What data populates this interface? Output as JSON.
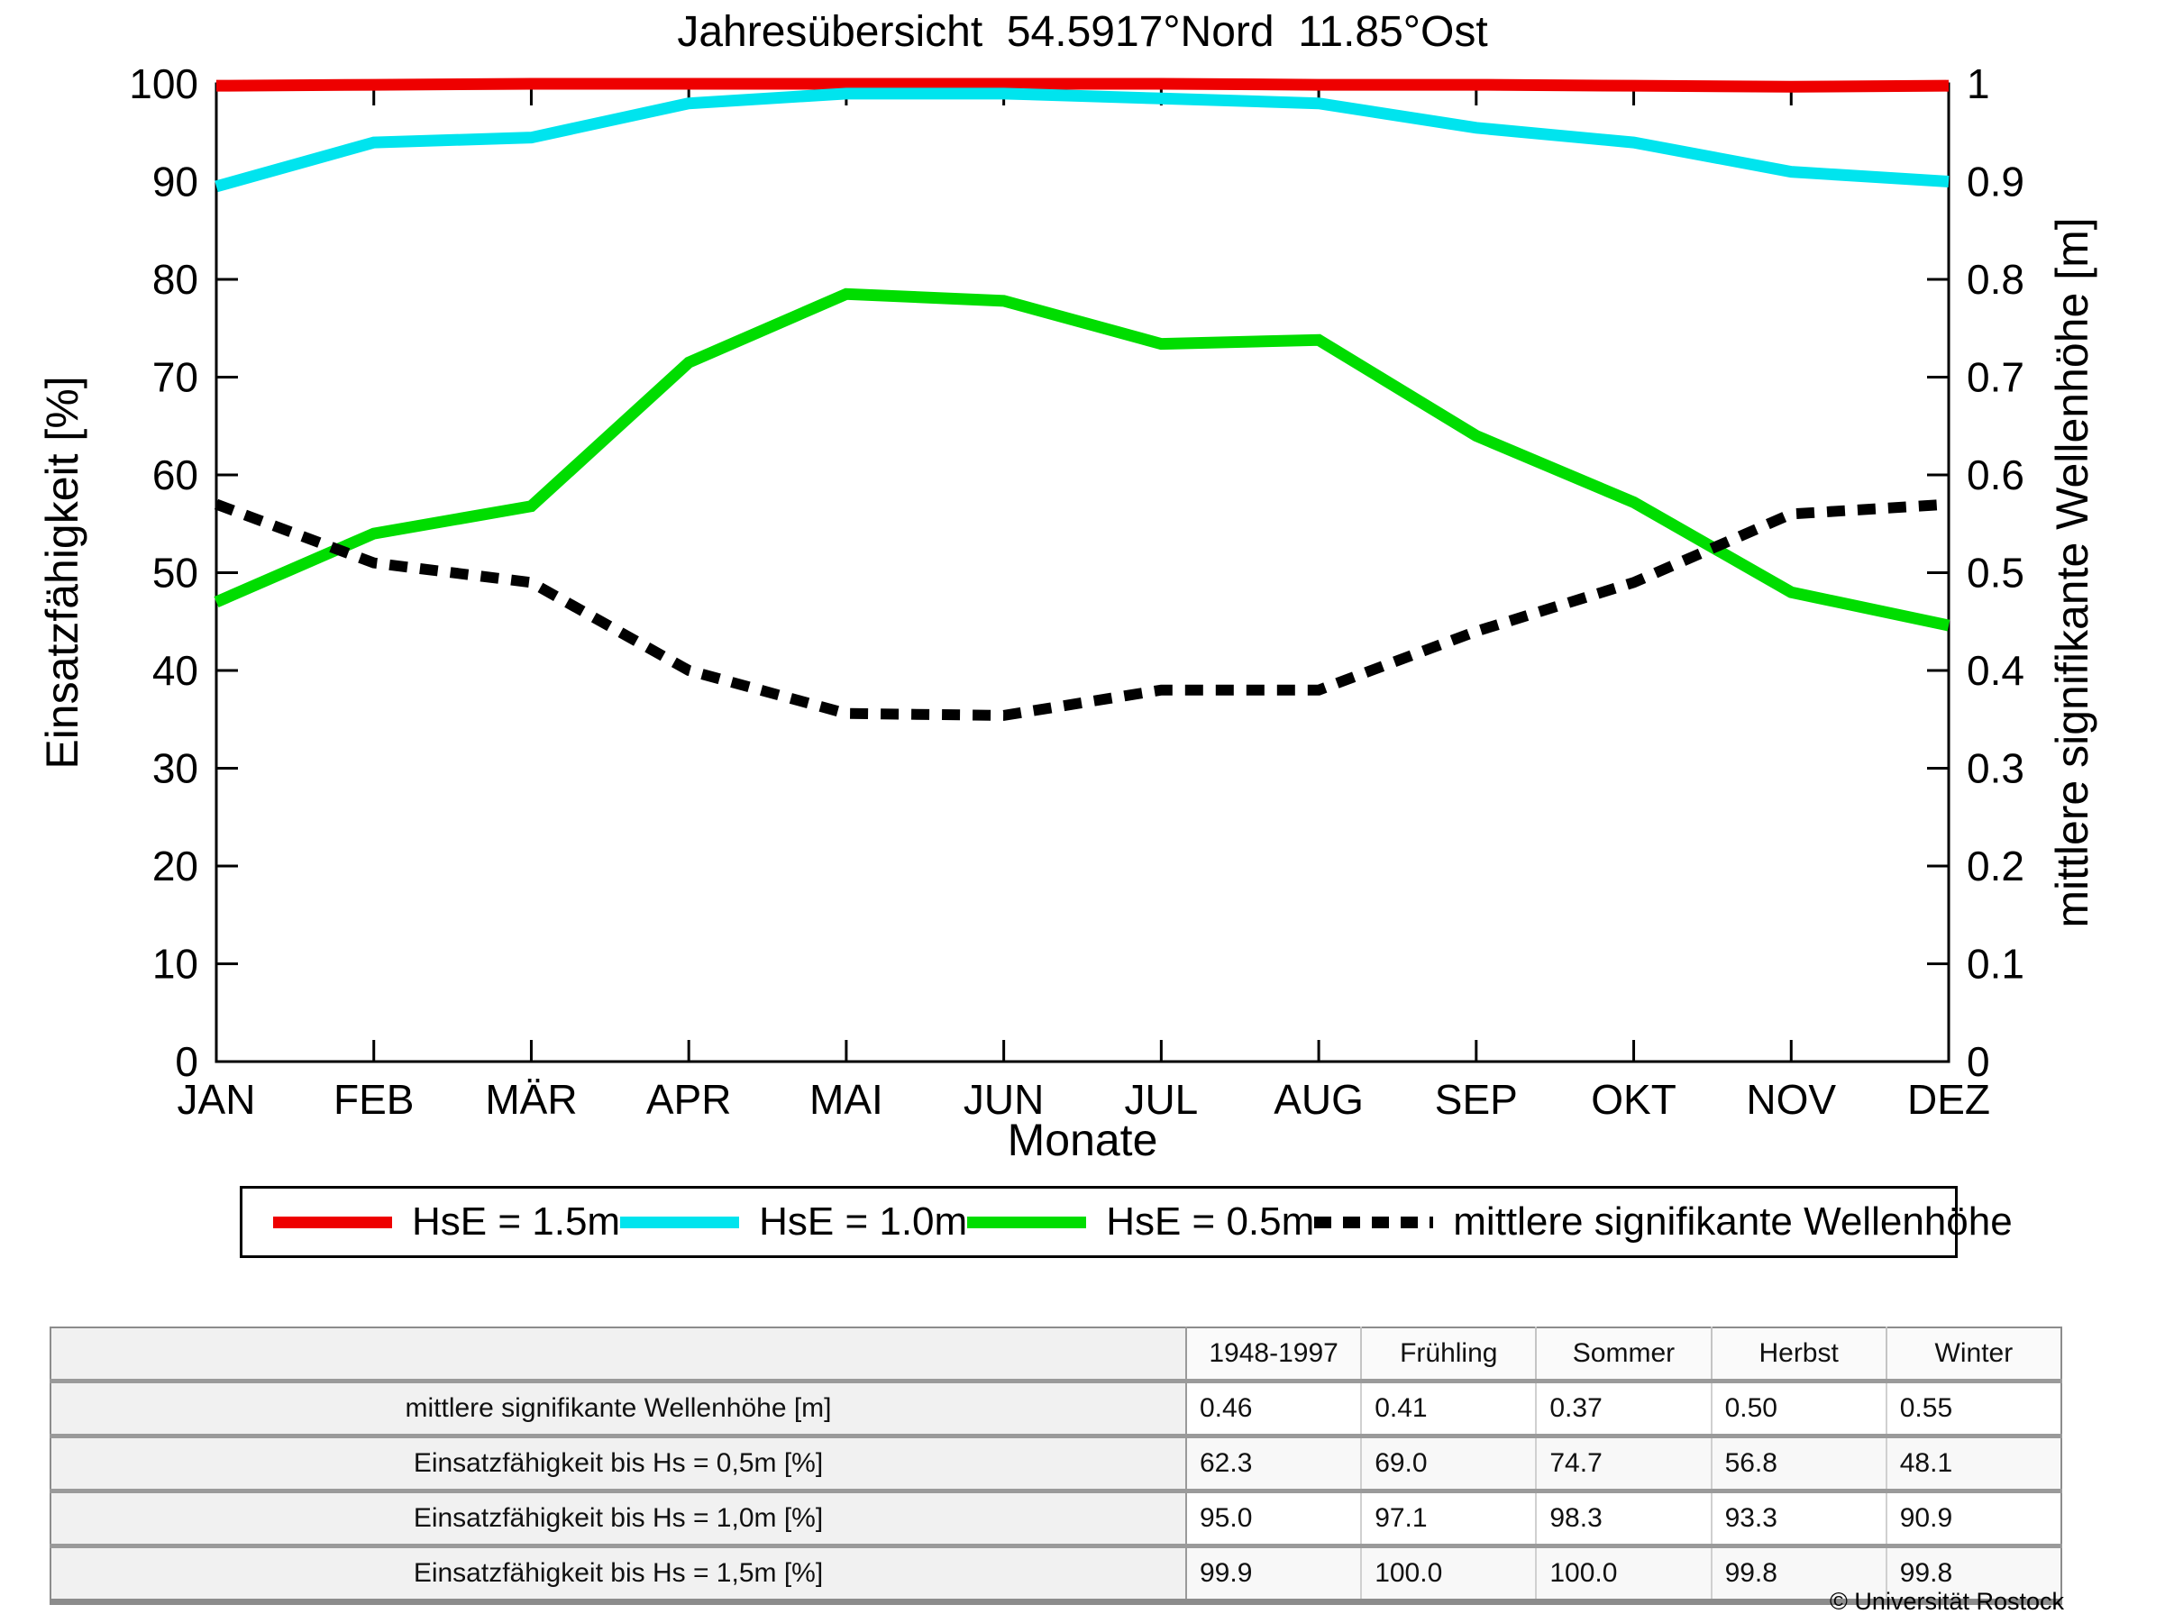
{
  "title": "Jahresübersicht  54.5917°Nord  11.85°Ost",
  "chart_data": {
    "type": "line",
    "categories": [
      "JAN",
      "FEB",
      "MÄR",
      "APR",
      "MAI",
      "JUN",
      "JUL",
      "AUG",
      "SEP",
      "OKT",
      "NOV",
      "DEZ"
    ],
    "xlabel": "Monate",
    "ylabel_left": "Einsatzfähigkeit [%]",
    "ylabel_right": "mittlere signifikante Wellenhöhe [m]",
    "ylim_left": [
      0,
      100
    ],
    "ylim_right": [
      0,
      1
    ],
    "yticks_left": [
      "0",
      "10",
      "20",
      "30",
      "40",
      "50",
      "60",
      "70",
      "80",
      "90",
      "100"
    ],
    "yticks_right": [
      "0",
      "0.1",
      "0.2",
      "0.3",
      "0.4",
      "0.5",
      "0.6",
      "0.7",
      "0.8",
      "0.9",
      "1"
    ],
    "grid": false,
    "legend_position": "bottom",
    "series": [
      {
        "name": "HsE = 1.5m",
        "color": "#ee0000",
        "style": "solid",
        "axis": "left",
        "values": [
          99.8,
          99.9,
          100.0,
          100.0,
          100.0,
          100.0,
          100.0,
          99.9,
          99.9,
          99.8,
          99.7,
          99.8
        ]
      },
      {
        "name": "HsE = 1.0m",
        "color": "#00e4ee",
        "style": "solid",
        "axis": "left",
        "values": [
          89.5,
          94.0,
          94.5,
          98.0,
          99.0,
          99.0,
          98.5,
          98.0,
          95.5,
          94.0,
          91.0,
          90.0
        ]
      },
      {
        "name": "HsE = 0.5m",
        "color": "#00dd00",
        "style": "solid",
        "axis": "left",
        "values": [
          47.0,
          54.0,
          56.8,
          71.5,
          78.5,
          77.8,
          73.4,
          73.8,
          64.0,
          57.2,
          48.0,
          44.6
        ]
      },
      {
        "name": "mittlere signifikante Wellenhöhe",
        "color": "#000000",
        "style": "dotted",
        "axis": "right",
        "values": [
          0.57,
          0.51,
          0.49,
          0.4,
          0.356,
          0.354,
          0.38,
          0.38,
          0.44,
          0.49,
          0.56,
          0.57
        ]
      }
    ]
  },
  "table": {
    "col_headers": [
      "1948-1997",
      "Frühling",
      "Sommer",
      "Herbst",
      "Winter"
    ],
    "rows": [
      {
        "label": "mittlere signifikante Wellenhöhe [m]",
        "values": [
          "0.46",
          "0.41",
          "0.37",
          "0.50",
          "0.55"
        ]
      },
      {
        "label": "Einsatzfähigkeit bis Hs = 0,5m [%]",
        "values": [
          "62.3",
          "69.0",
          "74.7",
          "56.8",
          "48.1"
        ]
      },
      {
        "label": "Einsatzfähigkeit bis Hs = 1,0m [%]",
        "values": [
          "95.0",
          "97.1",
          "98.3",
          "93.3",
          "90.9"
        ]
      },
      {
        "label": "Einsatzfähigkeit bis Hs = 1,5m [%]",
        "values": [
          "99.9",
          "100.0",
          "100.0",
          "99.8",
          "99.8"
        ]
      }
    ]
  },
  "footer": {
    "copyright": "© Universität Rostock"
  }
}
